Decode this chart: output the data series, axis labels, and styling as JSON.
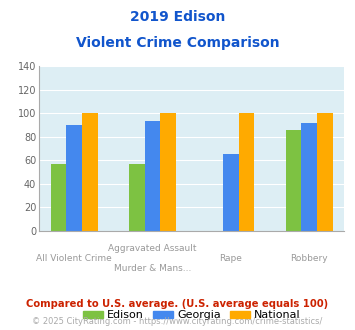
{
  "title_line1": "2019 Edison",
  "title_line2": "Violent Crime Comparison",
  "group_values": [
    [
      57,
      90,
      100
    ],
    [
      57,
      93,
      100
    ],
    [
      null,
      65,
      100
    ],
    [
      86,
      92,
      100
    ]
  ],
  "colors": [
    "#7dc242",
    "#4488ee",
    "#ffaa00"
  ],
  "series_names": [
    "Edison",
    "Georgia",
    "National"
  ],
  "ylim": [
    0,
    140
  ],
  "yticks": [
    0,
    20,
    40,
    60,
    80,
    100,
    120,
    140
  ],
  "top_labels": [
    "",
    "Aggravated Assault",
    "Rape",
    ""
  ],
  "bottom_labels": [
    "All Violent Crime",
    "Murder & Mans...",
    "",
    "Robbery"
  ],
  "title_color": "#1155cc",
  "footnote1": "Compared to U.S. average. (U.S. average equals 100)",
  "footnote1_color": "#cc2200",
  "footnote2": "© 2025 CityRating.com - https://www.cityrating.com/crime-statistics/",
  "footnote2_color": "#aaaaaa",
  "bg_color": "#ddeef4"
}
